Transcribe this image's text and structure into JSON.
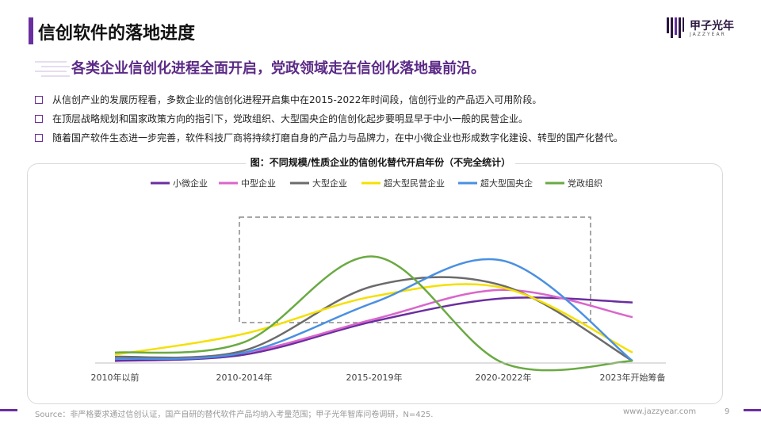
{
  "page": {
    "title": "信创软件的落地进度",
    "headline": "各类企业信创化进程全面开启，党政领域走在信创化落地最前沿。",
    "bullets": [
      "从信创产业的发展历程看，多数企业的信创化进程开启集中在2015-2022年时间段，信创行业的产品迈入可用阶段。",
      "在顶层战略规划和国家政策方向的指引下，党政组织、大型国央企的信创化起步要明显早于中小一般的民营企业。",
      "随着国产软件生态进一步完善，软件科技厂商将持续打磨自身的产品力与品牌力，在中小微企业也形成数字化建设、转型的国产化替代。"
    ],
    "source": "Source：非严格要求通过信创认证，国产自研的替代软件产品均纳入考量范围；甲子光年智库问卷调研，N=425.",
    "website": "www.jazzyear.com",
    "page_number": "9",
    "accent_color": "#6a2ea0"
  },
  "logo": {
    "name_cn": "甲子光年",
    "name_en": "JAZZYEAR"
  },
  "chart_data": {
    "type": "line",
    "title": "图：不同规模/性质企业的信创化替代开启年份（不完全统计）",
    "categories": [
      "2010年以前",
      "2010-2014年",
      "2015-2019年",
      "2020-2022年",
      "2023年开始筹备"
    ],
    "legend_position": "top",
    "grid": false,
    "y_axis_shown": false,
    "ylim": [
      0,
      60
    ],
    "highlight_box": "2015-2022年",
    "series": [
      {
        "name": "小微企业",
        "color": "#6a2ea0",
        "values": [
          1,
          4,
          20,
          31,
          29
        ]
      },
      {
        "name": "中型企业",
        "color": "#d966cc",
        "values": [
          2,
          5,
          21,
          35,
          22
        ]
      },
      {
        "name": "大型企业",
        "color": "#6b6b6b",
        "values": [
          3,
          6,
          37,
          37,
          1
        ]
      },
      {
        "name": "超大型民营企业",
        "color": "#f4e000",
        "values": [
          4,
          14,
          32,
          36,
          5
        ]
      },
      {
        "name": "超大型国央企",
        "color": "#4a90e2",
        "values": [
          2,
          5,
          29,
          49,
          1
        ]
      },
      {
        "name": "党政组织",
        "color": "#6aaa42",
        "values": [
          5,
          10,
          51,
          0,
          1
        ]
      }
    ]
  }
}
